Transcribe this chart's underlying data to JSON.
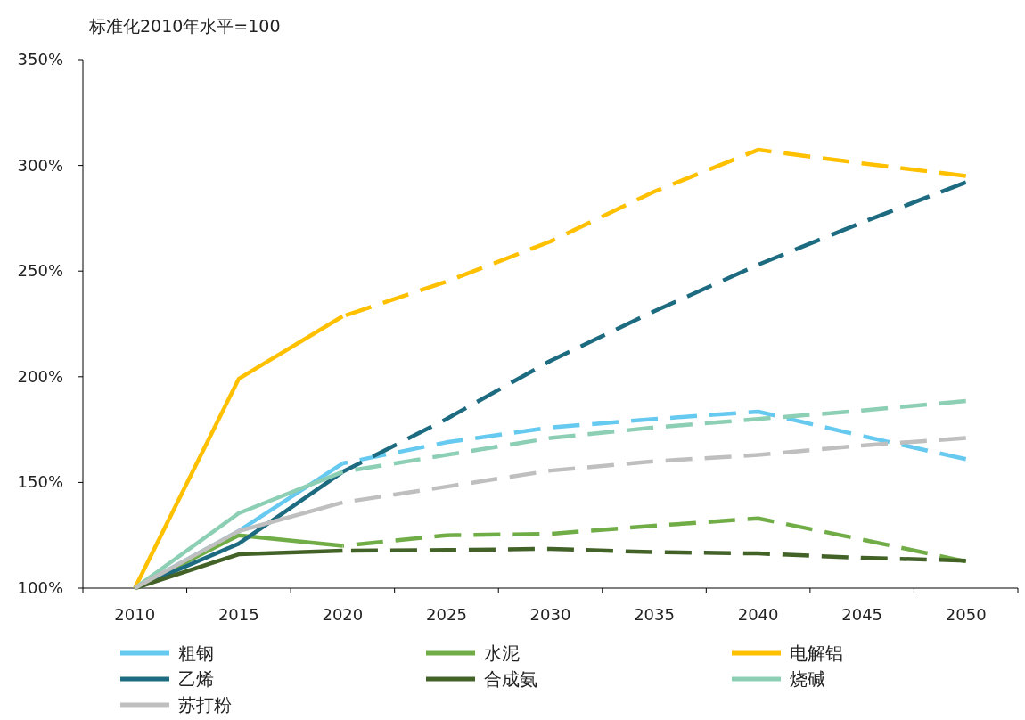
{
  "chart_data": {
    "type": "line",
    "ylabel": "标准化2010年水平=100",
    "categories": [
      "2010",
      "2015",
      "2020",
      "2025",
      "2030",
      "2035",
      "2040",
      "2045",
      "2050"
    ],
    "ylim": [
      100,
      350
    ],
    "yticks": [
      {
        "value": 100,
        "label": "100%"
      },
      {
        "value": 150,
        "label": "150%"
      },
      {
        "value": 200,
        "label": "200%"
      },
      {
        "value": 250,
        "label": "250%"
      },
      {
        "value": 300,
        "label": "300%"
      },
      {
        "value": 350,
        "label": "350%"
      }
    ],
    "grid": false,
    "legend": "bottom",
    "marker": "none",
    "series": [
      {
        "name": "粗钢",
        "color": "#66c9f0",
        "line_style": "solid",
        "values": [
          100,
          127,
          159,
          null,
          null,
          null,
          null,
          null,
          null
        ]
      },
      {
        "color": "#66c9f0",
        "line_style": "dashed",
        "values": [
          null,
          null,
          159,
          169,
          176,
          180,
          183.5,
          172,
          161
        ]
      },
      {
        "name": "水泥",
        "color": "#70ad47",
        "line_style": "solid",
        "values": [
          100,
          125,
          120,
          null,
          null,
          null,
          null,
          null,
          null
        ]
      },
      {
        "color": "#70ad47",
        "line_style": "dashed",
        "values": [
          null,
          null,
          120,
          125,
          125.7,
          129.5,
          133,
          123,
          112.6
        ]
      },
      {
        "name": "电解铝",
        "color": "#ffc000",
        "line_style": "solid",
        "values": [
          100,
          199,
          228.6,
          null,
          null,
          null,
          null,
          null,
          null
        ]
      },
      {
        "color": "#ffc000",
        "line_style": "dashed",
        "values": [
          null,
          null,
          228.6,
          245,
          264,
          287.6,
          307.4,
          301,
          295
        ]
      },
      {
        "name": "乙烯",
        "color": "#1d6b80",
        "line_style": "solid",
        "values": [
          100,
          121,
          155,
          null,
          null,
          null,
          null,
          null,
          null
        ]
      },
      {
        "color": "#1d6b80",
        "line_style": "dashed",
        "values": [
          null,
          null,
          155,
          180,
          207.5,
          231,
          253,
          273,
          292
        ]
      },
      {
        "name": "合成氨",
        "color": "#436228",
        "line_style": "solid",
        "values": [
          100,
          116,
          117.7,
          null,
          null,
          null,
          null,
          null,
          null
        ]
      },
      {
        "color": "#436228",
        "line_style": "dashed",
        "values": [
          null,
          null,
          117.7,
          118,
          118.6,
          117,
          116.4,
          114.3,
          113
        ]
      },
      {
        "name": "烧碱",
        "color": "#8ccfb4",
        "line_style": "solid",
        "values": [
          100,
          135.4,
          155,
          null,
          null,
          null,
          null,
          null,
          null
        ]
      },
      {
        "color": "#8ccfb4",
        "line_style": "dashed",
        "values": [
          null,
          null,
          155,
          163,
          171,
          176,
          180,
          184,
          188.5
        ]
      },
      {
        "name": "苏打粉",
        "color": "#bfbfbf",
        "line_style": "solid",
        "values": [
          100,
          127,
          140.5,
          null,
          null,
          null,
          null,
          null,
          null
        ]
      },
      {
        "color": "#bfbfbf",
        "line_style": "dashed",
        "values": [
          null,
          null,
          140.5,
          148,
          155.6,
          160,
          163,
          167.5,
          171
        ]
      }
    ]
  }
}
